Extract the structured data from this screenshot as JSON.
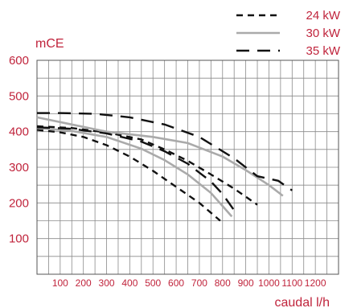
{
  "colors": {
    "text_accent": "#c0243c",
    "grid": "#8a8a8a",
    "series_dark": "#111111",
    "series_light": "#aaaaaa"
  },
  "chart_data": {
    "type": "line",
    "ylabel": "mCE",
    "xlabel": "caudal l/h",
    "xlim": [
      0,
      1300
    ],
    "ylim": [
      0,
      600
    ],
    "x_ticks": [
      100,
      200,
      300,
      400,
      500,
      600,
      700,
      800,
      900,
      1000,
      1100,
      1200
    ],
    "x_tick_labels": [
      "100",
      "200",
      "300",
      "400",
      "500",
      "600",
      "700",
      "800",
      "900",
      "1000",
      "1100",
      "1200"
    ],
    "y_ticks": [
      100,
      200,
      300,
      400,
      500,
      600
    ],
    "y_tick_labels": [
      "100",
      "200",
      "300",
      "400",
      "500",
      "600"
    ],
    "grid": true,
    "legend_position": "top-right",
    "series": [
      {
        "name": "24 kW",
        "style": "short-dash",
        "color": "#111111",
        "points": [
          [
            0,
            405
          ],
          [
            100,
            398
          ],
          [
            200,
            385
          ],
          [
            300,
            362
          ],
          [
            400,
            330
          ],
          [
            500,
            290
          ],
          [
            600,
            245
          ],
          [
            700,
            200
          ],
          [
            790,
            150
          ]
        ]
      },
      {
        "name": "24 kW",
        "style": "short-dash",
        "color": "#111111",
        "points": [
          [
            0,
            415
          ],
          [
            150,
            410
          ],
          [
            300,
            398
          ],
          [
            450,
            378
          ],
          [
            550,
            350
          ],
          [
            650,
            318
          ],
          [
            750,
            280
          ],
          [
            850,
            240
          ],
          [
            950,
            195
          ]
        ]
      },
      {
        "name": "30 kW",
        "style": "solid",
        "color": "#aaaaaa",
        "points": [
          [
            0,
            410
          ],
          [
            150,
            402
          ],
          [
            300,
            385
          ],
          [
            450,
            352
          ],
          [
            550,
            320
          ],
          [
            650,
            280
          ],
          [
            750,
            228
          ],
          [
            840,
            162
          ]
        ]
      },
      {
        "name": "30 kW",
        "style": "solid",
        "color": "#aaaaaa",
        "points": [
          [
            0,
            440
          ],
          [
            150,
            420
          ],
          [
            300,
            400
          ],
          [
            500,
            385
          ],
          [
            650,
            368
          ],
          [
            800,
            330
          ],
          [
            900,
            292
          ],
          [
            1000,
            250
          ],
          [
            1060,
            220
          ]
        ]
      },
      {
        "name": "35 kW",
        "style": "long-dash",
        "color": "#111111",
        "points": [
          [
            0,
            412
          ],
          [
            150,
            408
          ],
          [
            300,
            395
          ],
          [
            450,
            372
          ],
          [
            550,
            345
          ],
          [
            650,
            310
          ],
          [
            750,
            260
          ],
          [
            800,
            225
          ],
          [
            860,
            170
          ]
        ]
      },
      {
        "name": "35 kW",
        "style": "long-dash",
        "color": "#111111",
        "points": [
          [
            0,
            452
          ],
          [
            100,
            452
          ],
          [
            250,
            450
          ],
          [
            400,
            440
          ],
          [
            550,
            420
          ],
          [
            700,
            385
          ],
          [
            850,
            325
          ],
          [
            950,
            275
          ],
          [
            1040,
            262
          ],
          [
            1100,
            235
          ]
        ]
      }
    ],
    "legend": [
      {
        "label": "24 kW",
        "style": "short-dash",
        "color": "#111111"
      },
      {
        "label": "30 kW",
        "style": "solid",
        "color": "#aaaaaa"
      },
      {
        "label": "35 kW",
        "style": "long-dash",
        "color": "#111111"
      }
    ]
  }
}
